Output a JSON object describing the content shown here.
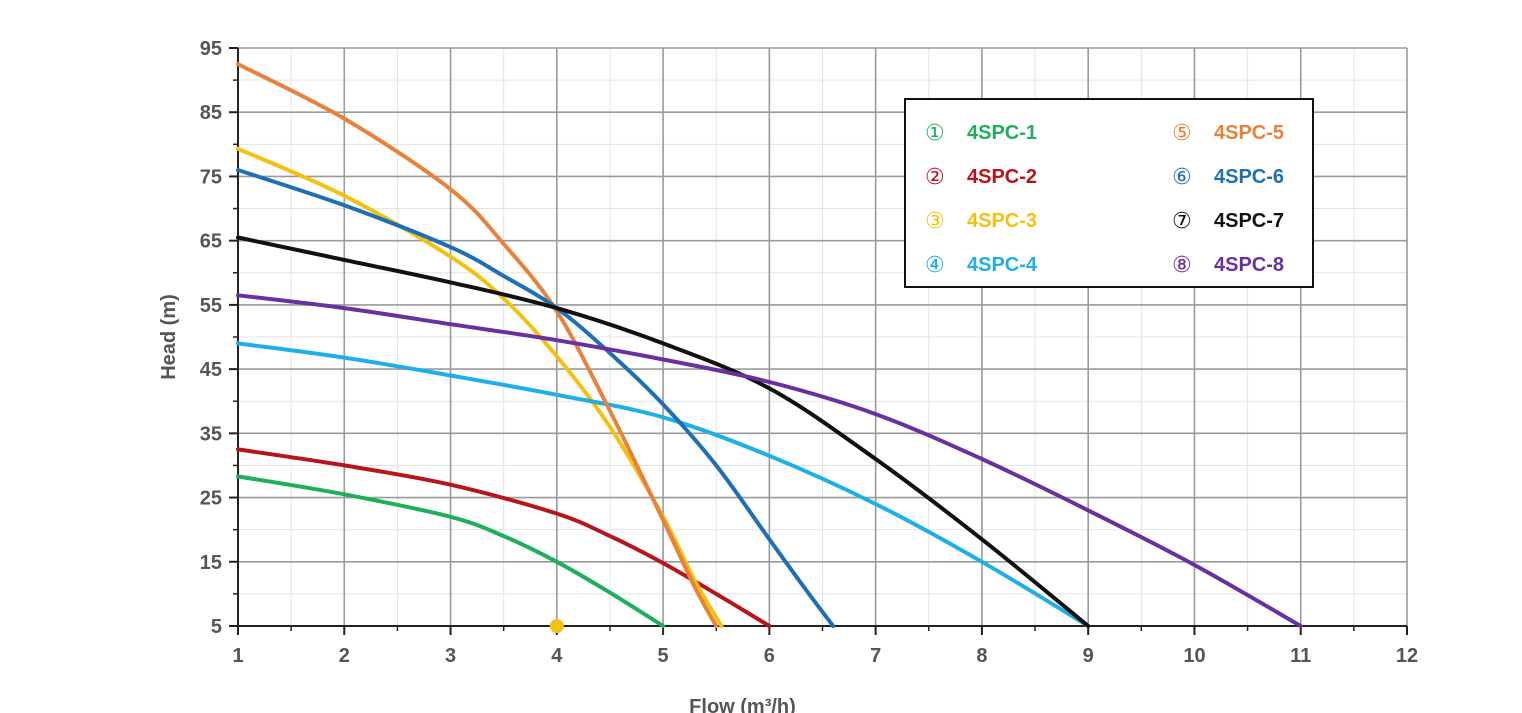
{
  "chart_data": {
    "type": "line",
    "xlabel": "Flow (m³/h)",
    "ylabel": "Head (m)",
    "xlim": [
      1,
      12
    ],
    "ylim": [
      5,
      95
    ],
    "x_ticks": [
      "1",
      "2",
      "3",
      "4",
      "5",
      "6",
      "7",
      "8",
      "9",
      "10",
      "11",
      "12"
    ],
    "y_ticks": [
      "5",
      "15",
      "25",
      "35",
      "45",
      "55",
      "65",
      "75",
      "85",
      "95"
    ],
    "grid": true,
    "legend_position": "top-right",
    "series": [
      {
        "marker": "①",
        "name": "4SPC-1",
        "color": "#1fae5a",
        "x": [
          1,
          2,
          3,
          3.5,
          4,
          4.5,
          5
        ],
        "y": [
          28.3,
          25.5,
          22,
          19,
          15,
          10.2,
          5
        ]
      },
      {
        "marker": "②",
        "name": "4SPC-2",
        "color": "#b8141c",
        "x": [
          1,
          2,
          3,
          4,
          4.5,
          5,
          5.5,
          6
        ],
        "y": [
          32.5,
          30,
          27,
          22.5,
          19,
          14.8,
          10,
          5
        ]
      },
      {
        "marker": "③",
        "name": "4SPC-3",
        "color": "#f3c10f",
        "x": [
          1,
          2,
          3,
          3.5,
          4,
          4.5,
          5,
          5.3,
          5.55
        ],
        "y": [
          79.3,
          72,
          62.5,
          56,
          47,
          36,
          22,
          12,
          5
        ]
      },
      {
        "marker": "④",
        "name": "4SPC-4",
        "color": "#1eaee8",
        "x": [
          1,
          2,
          3,
          4,
          5,
          6,
          7,
          8,
          9
        ],
        "y": [
          49,
          46.8,
          44,
          41,
          37.5,
          31.5,
          24,
          15,
          5
        ]
      },
      {
        "marker": "⑤",
        "name": "4SPC-5",
        "color": "#e8823a",
        "x": [
          1,
          2,
          3,
          3.5,
          4,
          4.5,
          5,
          5.3,
          5.5
        ],
        "y": [
          92.5,
          84,
          73,
          64.5,
          54,
          38.5,
          21.5,
          11,
          5
        ]
      },
      {
        "marker": "⑥",
        "name": "4SPC-6",
        "color": "#1f6fb5",
        "x": [
          1,
          2,
          3,
          3.5,
          4,
          4.5,
          5,
          5.5,
          6,
          6.35,
          6.6
        ],
        "y": [
          76,
          70.5,
          64,
          59.5,
          54.5,
          47.5,
          39.5,
          30,
          18.5,
          10.5,
          5
        ]
      },
      {
        "marker": "⑦",
        "name": "4SPC-7",
        "color": "#111111",
        "x": [
          1,
          2,
          3,
          4,
          5,
          6,
          7,
          8,
          9
        ],
        "y": [
          65.5,
          62,
          58.5,
          54.5,
          49,
          42,
          31,
          18.5,
          5
        ]
      },
      {
        "marker": "⑧",
        "name": "4SPC-8",
        "color": "#6a30a0",
        "x": [
          1,
          2,
          3,
          4,
          5,
          6,
          7,
          8,
          9,
          10,
          11
        ],
        "y": [
          56.5,
          54.5,
          52,
          49.5,
          46.5,
          43,
          38,
          31,
          23,
          14.5,
          5
        ]
      }
    ],
    "points": [
      {
        "x": 4,
        "y": 5,
        "color": "#f3c10f"
      }
    ]
  }
}
